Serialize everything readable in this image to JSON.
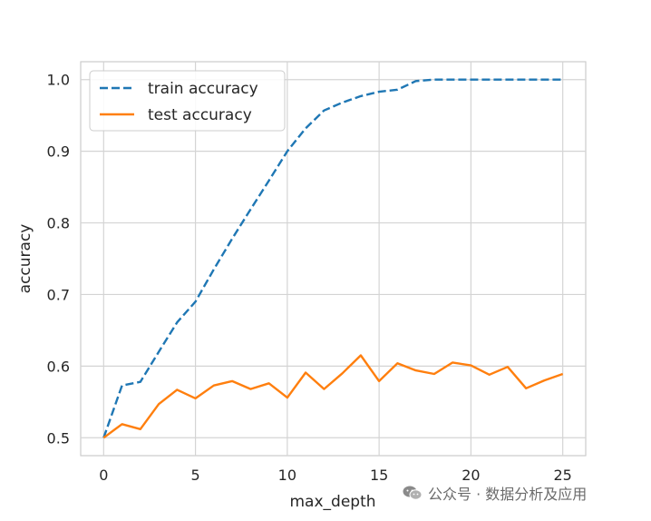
{
  "chart_data": {
    "type": "line",
    "xlabel": "max_depth",
    "ylabel": "accuracy",
    "xlim": [
      -1.25,
      26.25
    ],
    "ylim": [
      0.475,
      1.025
    ],
    "xticks": [
      0,
      5,
      10,
      15,
      20,
      25
    ],
    "xtick_labels": [
      "0",
      "5",
      "10",
      "15",
      "20",
      "25"
    ],
    "yticks": [
      0.5,
      0.6,
      0.7,
      0.8,
      0.9,
      1.0
    ],
    "ytick_labels": [
      "0.5",
      "0.6",
      "0.7",
      "0.8",
      "0.9",
      "1.0"
    ],
    "grid": true,
    "legend_position": "top-left",
    "x": [
      0,
      1,
      2,
      3,
      4,
      5,
      6,
      7,
      8,
      9,
      10,
      11,
      12,
      13,
      14,
      15,
      16,
      17,
      18,
      19,
      20,
      21,
      22,
      23,
      24,
      25
    ],
    "series": [
      {
        "name": "train accuracy",
        "style": "dashed",
        "color": "#1f77b4",
        "values": [
          0.5,
          0.573,
          0.578,
          0.62,
          0.661,
          0.69,
          0.735,
          0.778,
          0.819,
          0.859,
          0.9,
          0.932,
          0.957,
          0.968,
          0.977,
          0.983,
          0.986,
          0.998,
          1.0,
          1.0,
          1.0,
          1.0,
          1.0,
          1.0,
          1.0,
          1.0
        ]
      },
      {
        "name": "test accuracy",
        "style": "solid",
        "color": "#ff7f0e",
        "values": [
          0.5,
          0.519,
          0.512,
          0.547,
          0.567,
          0.555,
          0.573,
          0.579,
          0.568,
          0.576,
          0.556,
          0.591,
          0.568,
          0.59,
          0.615,
          0.579,
          0.604,
          0.594,
          0.589,
          0.605,
          0.601,
          0.588,
          0.599,
          0.569,
          0.58,
          0.589
        ]
      }
    ]
  },
  "watermark": {
    "icon": "wechat-icon",
    "text": "公众号 · 数据分析及应用"
  }
}
